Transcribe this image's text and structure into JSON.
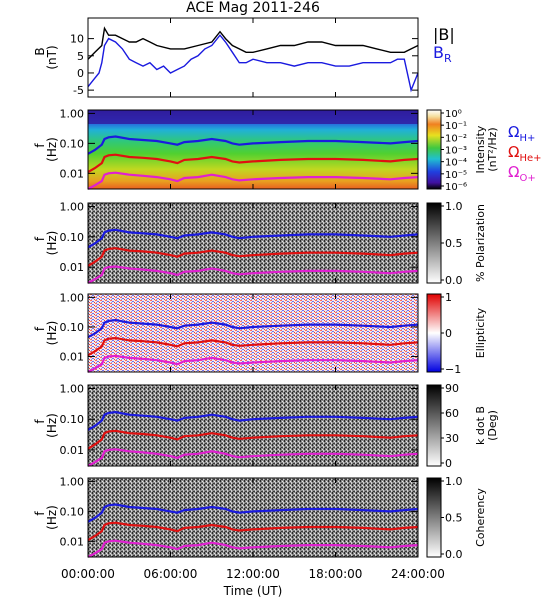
{
  "chart_data": [
    {
      "type": "line",
      "title": "ACE Mag 2011-246",
      "ylabel": "B",
      "yunit": "(nT)",
      "ylim": [
        -7,
        16
      ],
      "yticks": [
        -5,
        0,
        5,
        10
      ],
      "xlim": [
        0,
        24
      ],
      "series": [
        {
          "name": "|B|",
          "color": "#000000",
          "x": [
            0,
            0.5,
            1,
            1.2,
            1.5,
            2,
            2.5,
            3,
            3.5,
            4,
            4.5,
            5,
            6,
            7,
            8,
            9,
            9.6,
            10,
            10.5,
            11,
            11.5,
            12,
            13,
            14,
            15,
            16,
            17,
            18,
            19,
            20,
            21,
            22,
            22.5,
            23,
            23.5,
            24
          ],
          "y": [
            4,
            6,
            8,
            13,
            11,
            11,
            10,
            9,
            9,
            10,
            9,
            8,
            7,
            7,
            8,
            9,
            12,
            10,
            8,
            7,
            6,
            6,
            7,
            8,
            8,
            9,
            9,
            8,
            8,
            8,
            7,
            6,
            6,
            6,
            7,
            8
          ]
        },
        {
          "name": "B",
          "subscript": "R",
          "color": "#1a1adf",
          "x": [
            0,
            0.4,
            0.8,
            1,
            1.2,
            1.5,
            2,
            2.5,
            3,
            3.5,
            4,
            4.5,
            5,
            5.5,
            6,
            6.5,
            7,
            7.5,
            8,
            8.5,
            9,
            9.6,
            10,
            10.5,
            11,
            11.5,
            12,
            13,
            14,
            15,
            16,
            17,
            18,
            19,
            20,
            21,
            22,
            22.5,
            23,
            23.5,
            24
          ],
          "y": [
            -4,
            -2,
            0,
            3,
            8,
            10,
            9,
            7,
            4,
            3,
            2,
            3,
            1,
            2,
            0,
            1,
            2,
            4,
            5,
            7,
            8,
            11,
            9,
            6,
            3,
            3,
            4,
            3,
            3,
            2,
            3,
            3,
            2,
            2,
            3,
            3,
            3,
            4,
            4,
            -5,
            0
          ]
        }
      ]
    },
    {
      "type": "heatmap",
      "ylabel": "f",
      "yunit": "(Hz)",
      "yticks": [
        "1.00",
        "0.10",
        "0.01"
      ],
      "colorbar": {
        "label": "Intensity",
        "unit": "(nT²/Hz)",
        "ticks": [
          "10⁰",
          "10⁻¹",
          "10⁻²",
          "10⁻³",
          "10⁻⁴",
          "10⁻⁵",
          "10⁻⁶"
        ]
      },
      "gyrofrequency_labels": [
        {
          "text": "Ω",
          "sub": "H+",
          "color": "#1a1adf"
        },
        {
          "text": "Ω",
          "sub": "He+",
          "color": "#e01010"
        },
        {
          "text": "Ω",
          "sub": "O+",
          "color": "#e020d0"
        }
      ]
    },
    {
      "type": "heatmap",
      "ylabel": "f",
      "yunit": "(Hz)",
      "yticks": [
        "1.00",
        "0.10",
        "0.01"
      ],
      "colorbar": {
        "label": "% Polarization",
        "ticks": [
          "1.0",
          "0.5",
          "0.0"
        ]
      }
    },
    {
      "type": "heatmap",
      "ylabel": "f",
      "yunit": "(Hz)",
      "yticks": [
        "1.00",
        "0.10",
        "0.01"
      ],
      "colorbar": {
        "label": "Ellipticity",
        "ticks": [
          "1",
          "0",
          "−1"
        ]
      }
    },
    {
      "type": "heatmap",
      "ylabel": "f",
      "yunit": "(Hz)",
      "yticks": [
        "1.00",
        "0.10",
        "0.01"
      ],
      "colorbar": {
        "label": "k dot B",
        "unit": "(Deg)",
        "ticks": [
          "90",
          "60",
          "30",
          "0"
        ]
      }
    },
    {
      "type": "heatmap",
      "ylabel": "f",
      "yunit": "(Hz)",
      "yticks": [
        "1.00",
        "0.10",
        "0.01"
      ],
      "colorbar": {
        "label": "Coherency",
        "ticks": [
          "1.0",
          "0.5",
          "0.0"
        ]
      }
    }
  ],
  "gyrofrequency_curves": {
    "x": [
      0,
      0.5,
      1,
      1.2,
      1.5,
      2,
      3,
      4,
      5,
      6,
      6.5,
      7,
      8,
      9,
      10,
      10.5,
      11,
      12,
      14,
      16,
      18,
      20,
      22,
      23,
      24
    ],
    "H+": [
      0.045,
      0.06,
      0.09,
      0.14,
      0.16,
      0.17,
      0.14,
      0.13,
      0.12,
      0.1,
      0.09,
      0.11,
      0.12,
      0.14,
      0.12,
      0.1,
      0.09,
      0.1,
      0.11,
      0.12,
      0.12,
      0.11,
      0.1,
      0.11,
      0.12
    ],
    "He+": [
      0.011,
      0.015,
      0.022,
      0.035,
      0.04,
      0.042,
      0.035,
      0.033,
      0.03,
      0.025,
      0.022,
      0.028,
      0.03,
      0.035,
      0.03,
      0.025,
      0.023,
      0.025,
      0.028,
      0.03,
      0.03,
      0.028,
      0.025,
      0.028,
      0.03
    ],
    "O+": [
      0.003,
      0.004,
      0.0055,
      0.009,
      0.01,
      0.0105,
      0.009,
      0.0083,
      0.0075,
      0.0063,
      0.0055,
      0.007,
      0.0075,
      0.009,
      0.0075,
      0.0063,
      0.0058,
      0.0063,
      0.007,
      0.0075,
      0.0075,
      0.007,
      0.0063,
      0.007,
      0.0075
    ]
  },
  "x_axis": {
    "ticks": [
      "00:00:00",
      "06:00:00",
      "12:00:00",
      "18:00:00",
      "24:00:00"
    ],
    "tick_values": [
      0,
      6,
      12,
      18,
      24
    ],
    "label": "Time (UT)"
  }
}
